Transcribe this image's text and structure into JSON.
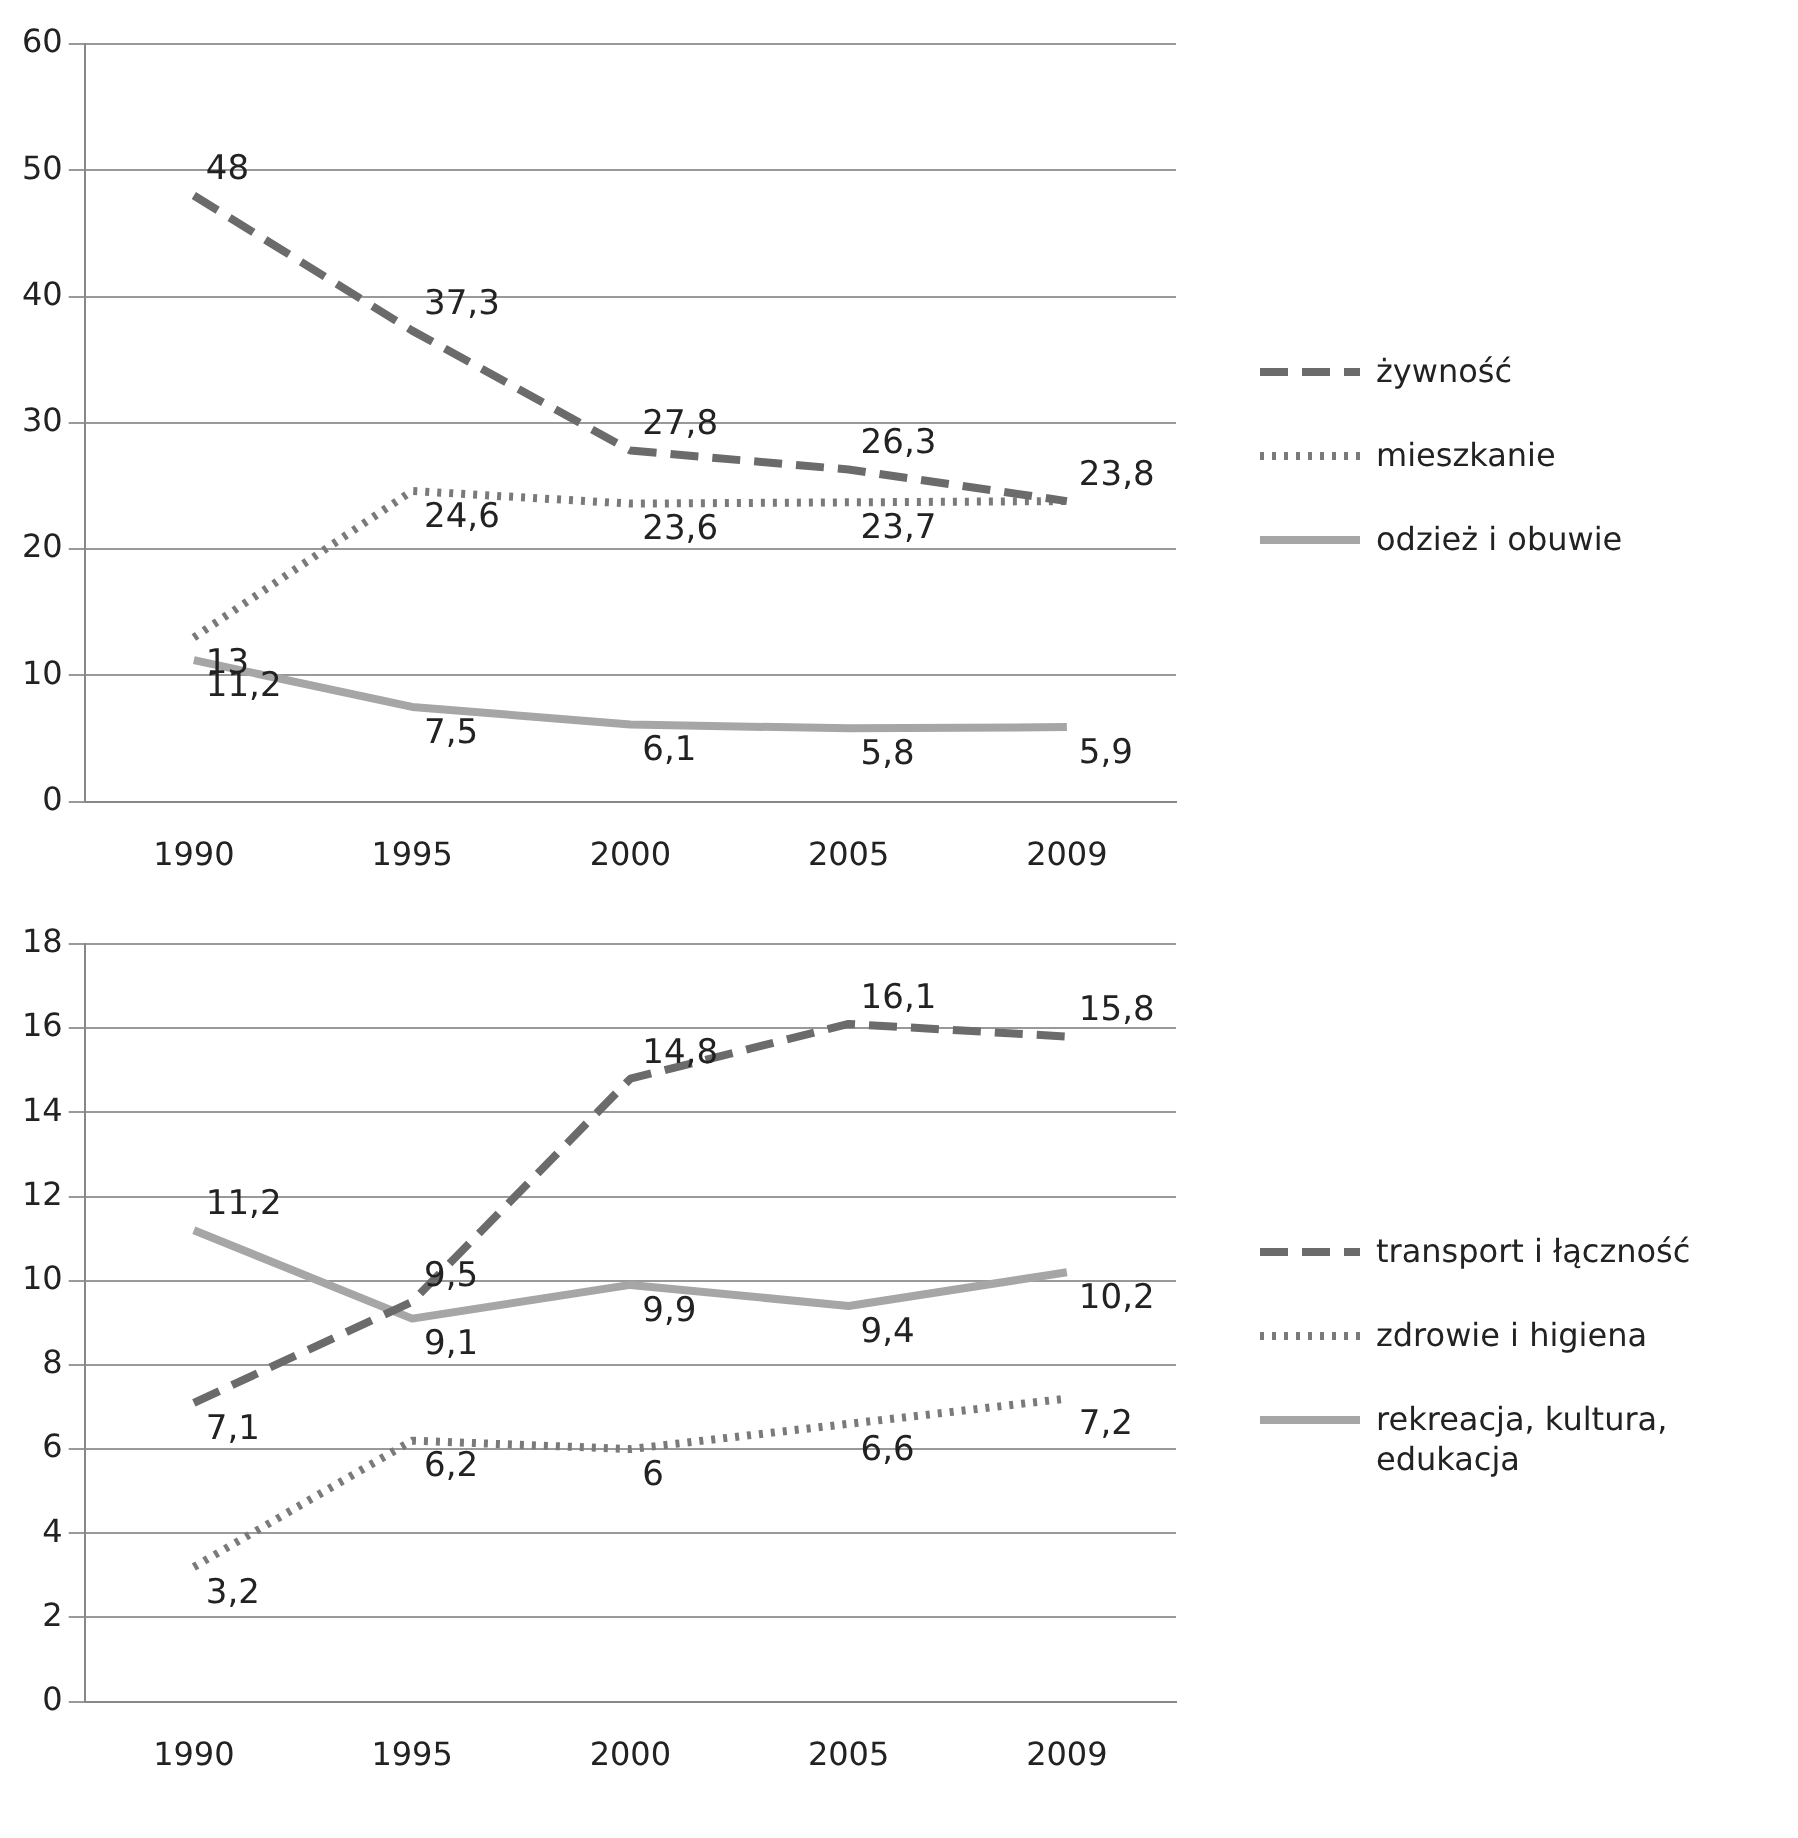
{
  "chart_data": [
    {
      "type": "line",
      "categories": [
        "1990",
        "1995",
        "2000",
        "2005",
        "2009"
      ],
      "series": [
        {
          "name": "żywność",
          "color": "#6b6b6b",
          "line_style": "dashed",
          "values": [
            48,
            37.3,
            27.8,
            26.3,
            23.8
          ],
          "value_labels": [
            "48",
            "37,3",
            "27,8",
            "26,3",
            "23,8"
          ]
        },
        {
          "name": "mieszkanie",
          "color": "#7a7a7a",
          "line_style": "dotted",
          "values": [
            13,
            24.6,
            23.6,
            23.7,
            23.8
          ],
          "value_labels": [
            "13",
            "24,6",
            "23,6",
            "23,7",
            null
          ]
        },
        {
          "name": "odzież i obuwie",
          "color": "#a6a6a6",
          "line_style": "solid",
          "values": [
            11.2,
            7.5,
            6.1,
            5.8,
            5.9
          ],
          "value_labels": [
            "11,2",
            "7,5",
            "6,1",
            "5,8",
            "5,9"
          ]
        }
      ],
      "ylim": [
        0,
        60
      ],
      "yticks": [
        0,
        10,
        20,
        30,
        40,
        50,
        60
      ],
      "grid": "y",
      "legend": "right",
      "marker": "none"
    },
    {
      "type": "line",
      "categories": [
        "1990",
        "1995",
        "2000",
        "2005",
        "2009"
      ],
      "series": [
        {
          "name": "transport i łączność",
          "color": "#6b6b6b",
          "line_style": "dashed",
          "values": [
            7.1,
            9.5,
            14.8,
            16.1,
            15.8
          ],
          "value_labels": [
            "7,1",
            "9,5",
            "14,8",
            "16,1",
            "15,8"
          ]
        },
        {
          "name": "zdrowie i higiena",
          "color": "#7a7a7a",
          "line_style": "dotted",
          "values": [
            3.2,
            6.2,
            6,
            6.6,
            7.2
          ],
          "value_labels": [
            "3,2",
            "6,2",
            "6",
            "6,6",
            "7,2"
          ]
        },
        {
          "name": "rekreacja, kultura, edukacja",
          "color": "#a6a6a6",
          "line_style": "solid",
          "values": [
            11.2,
            9.1,
            9.9,
            9.4,
            10.2
          ],
          "value_labels": [
            "11,2",
            "9,1",
            "9,9",
            "9,4",
            "10,2"
          ]
        }
      ],
      "ylim": [
        0,
        18
      ],
      "yticks": [
        0,
        2,
        4,
        6,
        8,
        10,
        12,
        14,
        16,
        18
      ],
      "grid": "y",
      "legend": "right",
      "marker": "none"
    }
  ]
}
